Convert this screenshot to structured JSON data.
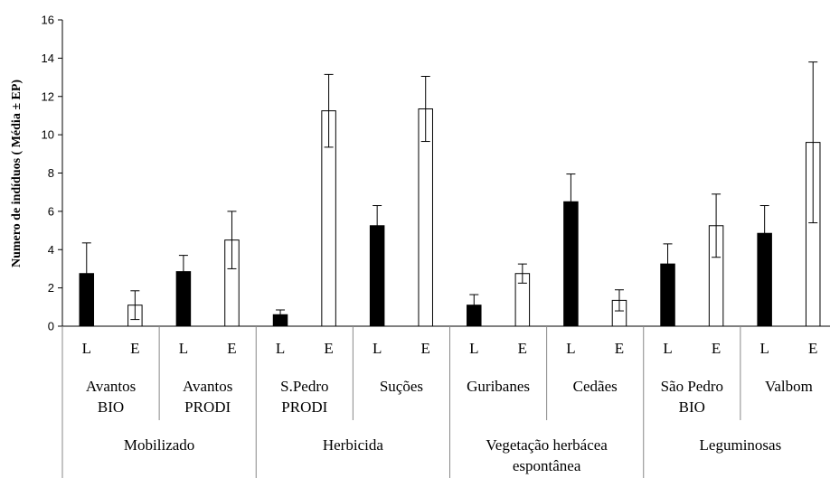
{
  "chart_data": {
    "type": "bar",
    "ylabel": "Numero de indíduos ( Média ± EP)",
    "ylim": [
      0,
      16
    ],
    "yticks": [
      0,
      2,
      4,
      6,
      8,
      10,
      12,
      14,
      16
    ],
    "colors": {
      "L": "#000000",
      "E": "#ffffff"
    },
    "groups": [
      {
        "name": "Mobilizado",
        "sites": [
          {
            "name": [
              "Avantos",
              "BIO"
            ],
            "bars": [
              {
                "label": "L",
                "value": 2.75,
                "err": 1.6
              },
              {
                "label": "E",
                "value": 1.1,
                "err": 0.75
              }
            ]
          },
          {
            "name": [
              "Avantos",
              "PRODI"
            ],
            "bars": [
              {
                "label": "L",
                "value": 2.85,
                "err": 0.85
              },
              {
                "label": "E",
                "value": 4.5,
                "err": 1.5
              }
            ]
          }
        ]
      },
      {
        "name": "Herbicida",
        "sites": [
          {
            "name": [
              "S.Pedro",
              "PRODI"
            ],
            "bars": [
              {
                "label": "L",
                "value": 0.6,
                "err": 0.25
              },
              {
                "label": "E",
                "value": 11.25,
                "err": 1.9
              }
            ]
          },
          {
            "name": [
              "Suções"
            ],
            "bars": [
              {
                "label": "L",
                "value": 5.25,
                "err": 1.05
              },
              {
                "label": "E",
                "value": 11.35,
                "err": 1.7
              }
            ]
          }
        ]
      },
      {
        "name": [
          "Vegetação herbácea",
          "espontânea"
        ],
        "sites": [
          {
            "name": [
              "Guribanes"
            ],
            "bars": [
              {
                "label": "L",
                "value": 1.1,
                "err": 0.55
              },
              {
                "label": "E",
                "value": 2.75,
                "err": 0.5
              }
            ]
          },
          {
            "name": [
              "Cedães"
            ],
            "bars": [
              {
                "label": "L",
                "value": 6.5,
                "err": 1.45
              },
              {
                "label": "E",
                "value": 1.35,
                "err": 0.55
              }
            ]
          }
        ]
      },
      {
        "name": "Leguminosas",
        "sites": [
          {
            "name": [
              "São Pedro",
              "BIO"
            ],
            "bars": [
              {
                "label": "L",
                "value": 3.25,
                "err": 1.05
              },
              {
                "label": "E",
                "value": 5.25,
                "err": 1.65
              }
            ]
          },
          {
            "name": [
              "Valbom"
            ],
            "bars": [
              {
                "label": "L",
                "value": 4.85,
                "err": 1.45
              },
              {
                "label": "E",
                "value": 9.6,
                "err": 4.2
              }
            ]
          }
        ]
      }
    ]
  }
}
